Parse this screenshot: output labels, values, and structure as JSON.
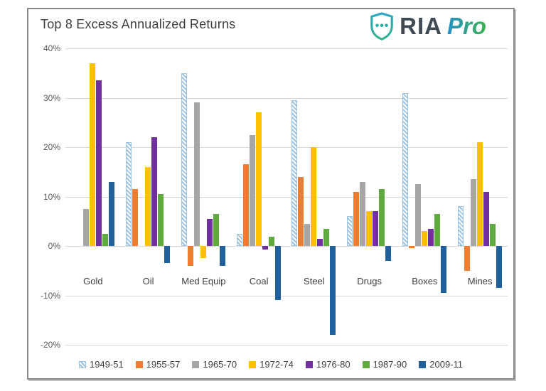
{
  "header": {
    "title": "Top 8 Excess Annualized Returns"
  },
  "logo": {
    "brand": "RIA",
    "suffix": "Pro",
    "shield_color": "#1caea5"
  },
  "colors": {
    "frame_border": "#898989",
    "gridline": "#d9d9d9",
    "title_text": "#3f3f3f",
    "axis_text": "#595959",
    "category_text": "#404040"
  },
  "chart_data": {
    "type": "bar",
    "title": "Top 8 Excess Annualized Returns",
    "categories": [
      "Gold",
      "Oil",
      "Med Equip",
      "Coal",
      "Steel",
      "Drugs",
      "Boxes",
      "Mines"
    ],
    "series": [
      {
        "name": "1949-51",
        "color": "#9dc3e6",
        "pattern": "diagonal-hatch",
        "values": [
          0,
          21,
          35,
          2.5,
          29.5,
          6,
          31,
          8
        ]
      },
      {
        "name": "1955-57",
        "color": "#ed7d31",
        "pattern": "solid",
        "values": [
          0,
          11.5,
          -4,
          16.5,
          14,
          11,
          -0.5,
          -5
        ]
      },
      {
        "name": "1965-70",
        "color": "#a6a6a6",
        "pattern": "solid",
        "values": [
          7.5,
          0,
          29,
          22.5,
          4.5,
          13,
          12.5,
          13.5
        ]
      },
      {
        "name": "1972-74",
        "color": "#ffc000",
        "pattern": "solid",
        "values": [
          37,
          16,
          -2.5,
          27,
          20,
          7,
          3,
          21
        ]
      },
      {
        "name": "1976-80",
        "color": "#7030a0",
        "pattern": "solid",
        "values": [
          33.5,
          22,
          5.5,
          -0.7,
          1.5,
          7,
          3.5,
          11
        ]
      },
      {
        "name": "1987-90",
        "color": "#5faa3c",
        "pattern": "solid",
        "values": [
          2.5,
          10.5,
          6.5,
          1.8,
          3.5,
          11.5,
          6.5,
          4.5
        ]
      },
      {
        "name": "2009-11",
        "color": "#20609c",
        "pattern": "solid",
        "values": [
          13,
          -3.5,
          -4,
          -11,
          -18,
          -3,
          -9.5,
          -8.5
        ]
      }
    ],
    "ylabel": "",
    "xlabel": "",
    "ylim": [
      -20,
      40
    ],
    "ytick_step": 10,
    "ytick_suffix": "%",
    "grid": true,
    "legend_position": "bottom"
  }
}
